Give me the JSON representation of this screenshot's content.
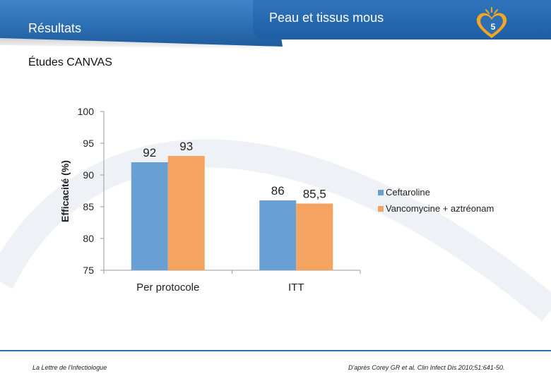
{
  "header": {
    "section_title": "Résultats",
    "page_heading": "Peau et tissus mous",
    "page_number": "5"
  },
  "subtitle": "Études CANVAS",
  "colors": {
    "ceftaroline": "#6a9fd3",
    "vancomycine": "#f4a460",
    "brand_blue": "#2d6fb3"
  },
  "chart_data": {
    "type": "bar",
    "title": "",
    "xlabel": "",
    "ylabel": "Efficacité (%)",
    "ylim": [
      75,
      100
    ],
    "yticks": [
      75,
      80,
      85,
      90,
      95,
      100
    ],
    "categories": [
      "Per protocole",
      "ITT"
    ],
    "series": [
      {
        "name": "Ceftaroline",
        "values": [
          92,
          86
        ],
        "labels": [
          "92",
          "86"
        ]
      },
      {
        "name": "Vancomycine + aztréonam",
        "values": [
          93,
          85.5
        ],
        "labels": [
          "93",
          "85,5"
        ]
      }
    ],
    "legend_position": "right"
  },
  "footer": {
    "left": "La Lettre de l'Infectiologue",
    "right": "D'après Corey GR et al. Clin Infect Dis 2010;51:641-50."
  }
}
